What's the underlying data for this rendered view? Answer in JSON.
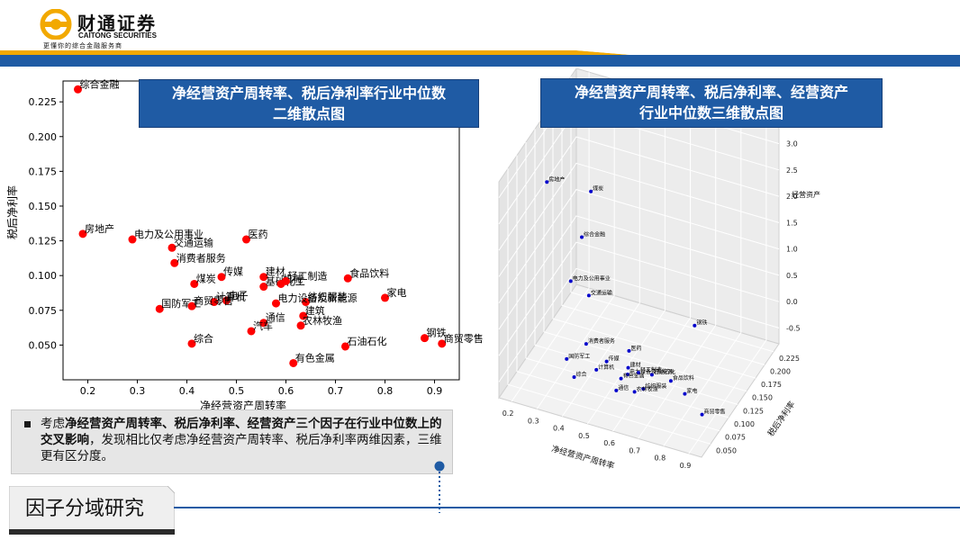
{
  "brand": {
    "name_cn": "财通证券",
    "name_en": "CAITONG SECURITIES",
    "slogan": "更懂你的综合金融服务商",
    "primary_color": "#1f5ba4",
    "accent_color": "#f2a900"
  },
  "chart2d_title": {
    "line1": "净经营资产周转率、税后净利率行业中位数",
    "line2": "二维散点图"
  },
  "chart3d_title": {
    "line1": "净经营资产周转率、税后净利率、经营资产",
    "line2": "行业中位数三维散点图"
  },
  "note": {
    "bold_prefix": "考虑",
    "bold_text": "净经营资产周转率、税后净利率、经营资产三个因子在行业中位数上的交叉影响",
    "rest_text": "，发现相比仅考虑净经营资产周转率、税后净利率两维因素，三维更有区分度。"
  },
  "footer": {
    "label": "因子分域研究"
  },
  "chart_data": [
    {
      "type": "scatter",
      "title": "",
      "xlabel": "净经营资产周转率",
      "ylabel": "税后净利率",
      "xlim": [
        0.15,
        0.95
      ],
      "ylim": [
        0.025,
        0.24
      ],
      "xticks": [
        "0.2",
        "0.3",
        "0.4",
        "0.5",
        "0.6",
        "0.7",
        "0.8",
        "0.9"
      ],
      "yticks": [
        "0.050",
        "0.075",
        "0.100",
        "0.125",
        "0.150",
        "0.175",
        "0.200",
        "0.225"
      ],
      "marker_color": "#ff0000",
      "grid": false,
      "points": [
        {
          "label": "综合金融",
          "x": 0.18,
          "y": 0.234
        },
        {
          "label": "房地产",
          "x": 0.19,
          "y": 0.13
        },
        {
          "label": "电力及公用事业",
          "x": 0.29,
          "y": 0.126
        },
        {
          "label": "交通运输",
          "x": 0.37,
          "y": 0.12
        },
        {
          "label": "消费者服务",
          "x": 0.375,
          "y": 0.109
        },
        {
          "label": "医药",
          "x": 0.52,
          "y": 0.126
        },
        {
          "label": "传媒",
          "x": 0.47,
          "y": 0.099
        },
        {
          "label": "煤炭",
          "x": 0.415,
          "y": 0.094
        },
        {
          "label": "建材",
          "x": 0.555,
          "y": 0.099
        },
        {
          "label": "基础化工",
          "x": 0.555,
          "y": 0.092
        },
        {
          "label": "机械",
          "x": 0.59,
          "y": 0.094
        },
        {
          "label": "轻工制造",
          "x": 0.6,
          "y": 0.096
        },
        {
          "label": "食品饮料",
          "x": 0.725,
          "y": 0.098
        },
        {
          "label": "家电",
          "x": 0.8,
          "y": 0.084
        },
        {
          "label": "纺织服装",
          "x": 0.64,
          "y": 0.081
        },
        {
          "label": "电力设备及新能源",
          "x": 0.58,
          "y": 0.08
        },
        {
          "label": "电子",
          "x": 0.48,
          "y": 0.082
        },
        {
          "label": "计算机",
          "x": 0.455,
          "y": 0.081
        },
        {
          "label": "国防军工",
          "x": 0.345,
          "y": 0.076
        },
        {
          "label": "商贸零售",
          "x": 0.41,
          "y": 0.078
        },
        {
          "label": "建筑",
          "x": 0.635,
          "y": 0.071
        },
        {
          "label": "农林牧渔",
          "x": 0.63,
          "y": 0.064
        },
        {
          "label": "通信",
          "x": 0.555,
          "y": 0.066
        },
        {
          "label": "汽车",
          "x": 0.53,
          "y": 0.06
        },
        {
          "label": "综合",
          "x": 0.41,
          "y": 0.051
        },
        {
          "label": "石油石化",
          "x": 0.72,
          "y": 0.049
        },
        {
          "label": "钢铁",
          "x": 0.88,
          "y": 0.055
        },
        {
          "label": "商贸零售",
          "x": 0.915,
          "y": 0.051
        },
        {
          "label": "有色金属",
          "x": 0.615,
          "y": 0.037
        }
      ]
    },
    {
      "type": "scatter",
      "title": "",
      "xlabel": "净经营资产周转率",
      "ylabel": "税后净利率",
      "zlabel": "经营资产",
      "xticks": [
        "0.2",
        "0.3",
        "0.4",
        "0.5",
        "0.6",
        "0.7",
        "0.8",
        "0.9"
      ],
      "yticks": [
        "0.050",
        "0.075",
        "0.100",
        "0.125",
        "0.150",
        "0.175",
        "0.200",
        "0.225"
      ],
      "zticks": [
        "-0.5",
        "0.0",
        "0.5",
        "1.0",
        "1.5",
        "2.0",
        "2.5",
        "3.0"
      ],
      "marker_color": "#0000cc",
      "grid": true,
      "points": [
        {
          "label": "煤炭",
          "x": 0.415,
          "y": 0.094,
          "z": 2.8
        },
        {
          "label": "房地产",
          "x": 0.19,
          "y": 0.13,
          "z": 2.3
        },
        {
          "label": "钢铁",
          "x": 0.88,
          "y": 0.055,
          "z": 1.3
        },
        {
          "label": "交通运输",
          "x": 0.37,
          "y": 0.12,
          "z": 0.5
        },
        {
          "label": "综合金融",
          "x": 0.18,
          "y": 0.234,
          "z": 0.2
        },
        {
          "label": "电力及公用事业",
          "x": 0.29,
          "y": 0.126,
          "z": 0.6
        },
        {
          "label": "石油石化",
          "x": 0.72,
          "y": 0.049,
          "z": 0.2
        },
        {
          "label": "医药",
          "x": 0.52,
          "y": 0.126,
          "z": -0.4
        },
        {
          "label": "国防军工",
          "x": 0.345,
          "y": 0.076,
          "z": -0.3
        },
        {
          "label": "消费者服务",
          "x": 0.375,
          "y": 0.109,
          "z": -0.3
        },
        {
          "label": "传媒",
          "x": 0.47,
          "y": 0.099,
          "z": -0.4
        },
        {
          "label": "建材",
          "x": 0.555,
          "y": 0.099,
          "z": -0.4
        },
        {
          "label": "电力设备及新能源",
          "x": 0.58,
          "y": 0.08,
          "z": -0.3
        },
        {
          "label": "计算机",
          "x": 0.455,
          "y": 0.081,
          "z": -0.4
        },
        {
          "label": "轻工制造",
          "x": 0.6,
          "y": 0.096,
          "z": -0.4
        },
        {
          "label": "有色金属",
          "x": 0.615,
          "y": 0.037,
          "z": 0.1
        },
        {
          "label": "食品饮料",
          "x": 0.725,
          "y": 0.098,
          "z": -0.4
        },
        {
          "label": "纺织服装",
          "x": 0.64,
          "y": 0.081,
          "z": -0.5
        },
        {
          "label": "综合",
          "x": 0.41,
          "y": 0.051,
          "z": -0.3
        },
        {
          "label": "通信",
          "x": 0.555,
          "y": 0.066,
          "z": -0.5
        },
        {
          "label": "农林牧渔",
          "x": 0.63,
          "y": 0.064,
          "z": -0.4
        },
        {
          "label": "家电",
          "x": 0.8,
          "y": 0.084,
          "z": -0.4
        },
        {
          "label": "商贸零售",
          "x": 0.915,
          "y": 0.051,
          "z": -0.3
        }
      ]
    }
  ]
}
